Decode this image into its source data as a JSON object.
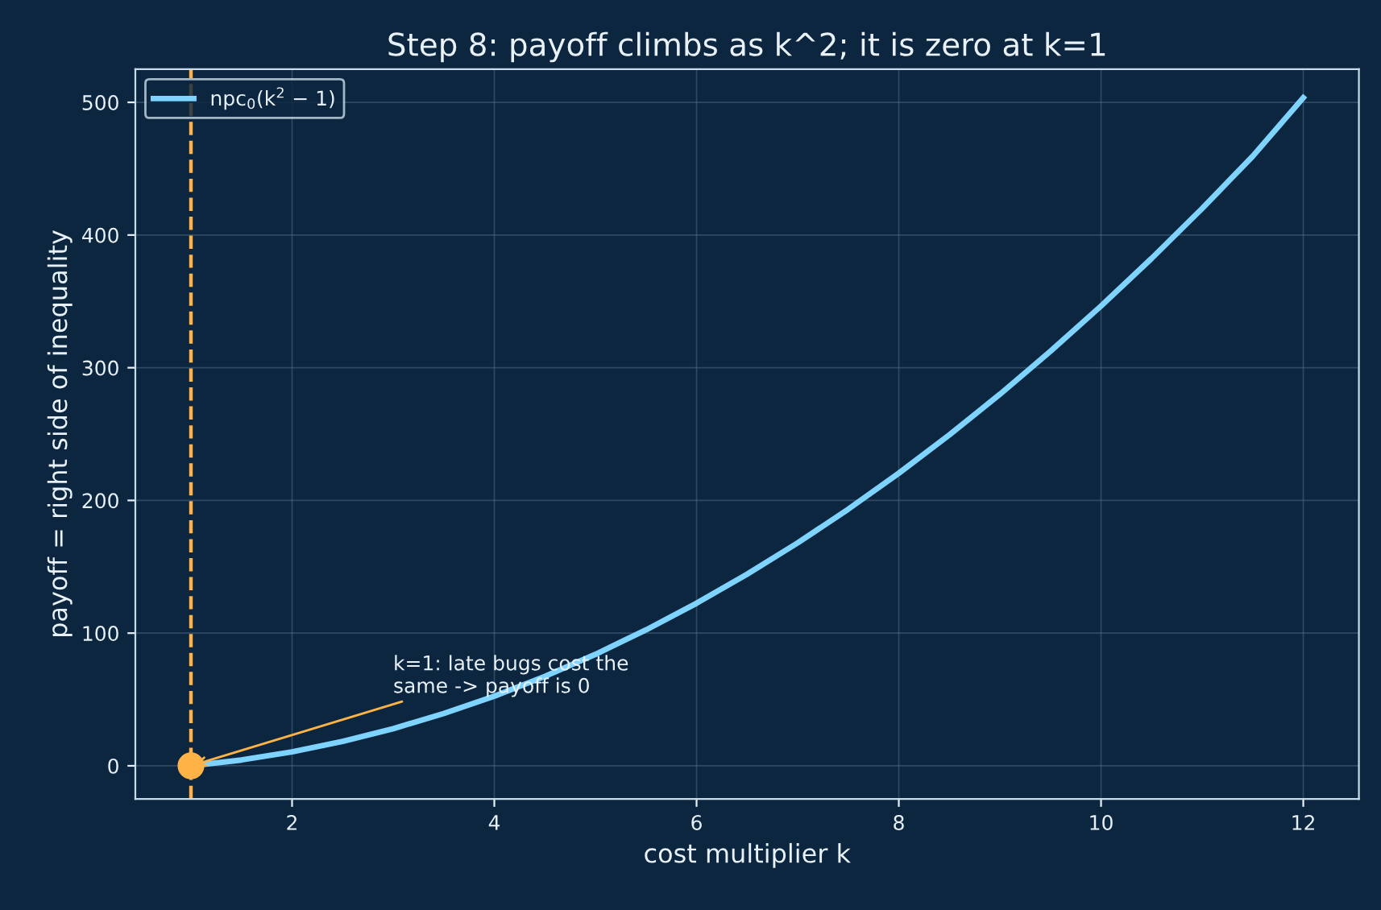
{
  "chart_data": {
    "type": "line",
    "title": "Step 8: payoff climbs as k^2; it is zero at k=1",
    "xlabel": "cost multiplier k",
    "ylabel": "payoff = right side of inequality",
    "series": [
      {
        "name": "npc$_{0}$(k$^{2}$ − 1)",
        "color": "#7fd3ff",
        "x": [
          1,
          1.5,
          2,
          2.5,
          3,
          3.5,
          4,
          4.5,
          5,
          5.5,
          6,
          6.5,
          7,
          7.5,
          8,
          8.5,
          9,
          9.5,
          10,
          10.5,
          11,
          11.5,
          12
        ],
        "values": [
          0,
          4.4,
          10.5,
          18.4,
          28,
          39.4,
          52.5,
          67.4,
          84,
          102.4,
          122.5,
          144.4,
          168,
          193.4,
          220.5,
          249.4,
          280,
          312.4,
          346.5,
          382.4,
          420,
          459.4,
          503.5
        ]
      },
      {
        "type": "scatter",
        "color": "#ffb347",
        "x": [
          1
        ],
        "values": [
          0
        ]
      }
    ],
    "ref_lines": [
      {
        "axis": "x",
        "value": 1,
        "color": "#ffb347",
        "line_style": "dashed"
      }
    ],
    "annotations": [
      {
        "text": "k=1: late bugs cost the\nsame -> payoff is 0",
        "x": 1,
        "y": 0
      }
    ],
    "xlim": [
      0.45,
      12.55
    ],
    "ylim": [
      -25,
      525
    ],
    "xticks": [
      2,
      4,
      6,
      8,
      10,
      12
    ],
    "yticks": [
      0,
      100,
      200,
      300,
      400,
      500
    ],
    "grid": true,
    "legend": "top left"
  }
}
